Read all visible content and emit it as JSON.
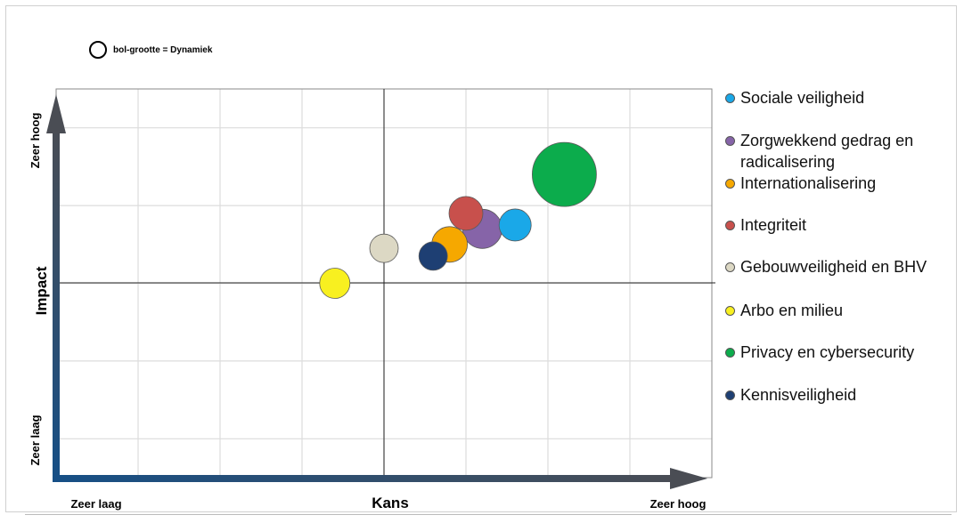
{
  "size_key": {
    "label": "bol-grootte = Dynamiek"
  },
  "chart_data": {
    "type": "scatter",
    "bubble": true,
    "size_meaning": "Dynamiek",
    "xlabel": "Kans",
    "ylabel": "Impact",
    "x_low_label": "Zeer laag",
    "x_high_label": "Zeer hoog",
    "y_low_label": "Zeer laag",
    "y_high_label": "Zeer hoog",
    "xlim": [
      0,
      8
    ],
    "ylim": [
      0,
      10
    ],
    "grid": true,
    "legend_position": "right",
    "series": [
      {
        "name": "Sociale veiligheid",
        "color": "#1aa8e8",
        "x": 5.6,
        "y": 6.5,
        "size": 18
      },
      {
        "name": "Zorgwekkend gedrag en radicalisering",
        "color": "#8664a8",
        "x": 5.2,
        "y": 6.4,
        "size": 22
      },
      {
        "name": "Internationalisering",
        "color": "#f6a800",
        "x": 4.8,
        "y": 6.0,
        "size": 20
      },
      {
        "name": "Integriteit",
        "color": "#c8504c",
        "x": 5.0,
        "y": 6.8,
        "size": 19
      },
      {
        "name": "Gebouwveiligheid en BHV",
        "color": "#dcd8c4",
        "x": 4.0,
        "y": 5.9,
        "size": 16
      },
      {
        "name": "Arbo en milieu",
        "color": "#f8f020",
        "x": 3.4,
        "y": 5.0,
        "size": 17
      },
      {
        "name": "Privacy en cybersecurity",
        "color": "#0cac4c",
        "x": 6.2,
        "y": 7.8,
        "size": 36
      },
      {
        "name": "Kennisveiligheid",
        "color": "#1e3f73",
        "x": 4.6,
        "y": 5.7,
        "size": 16
      }
    ]
  }
}
